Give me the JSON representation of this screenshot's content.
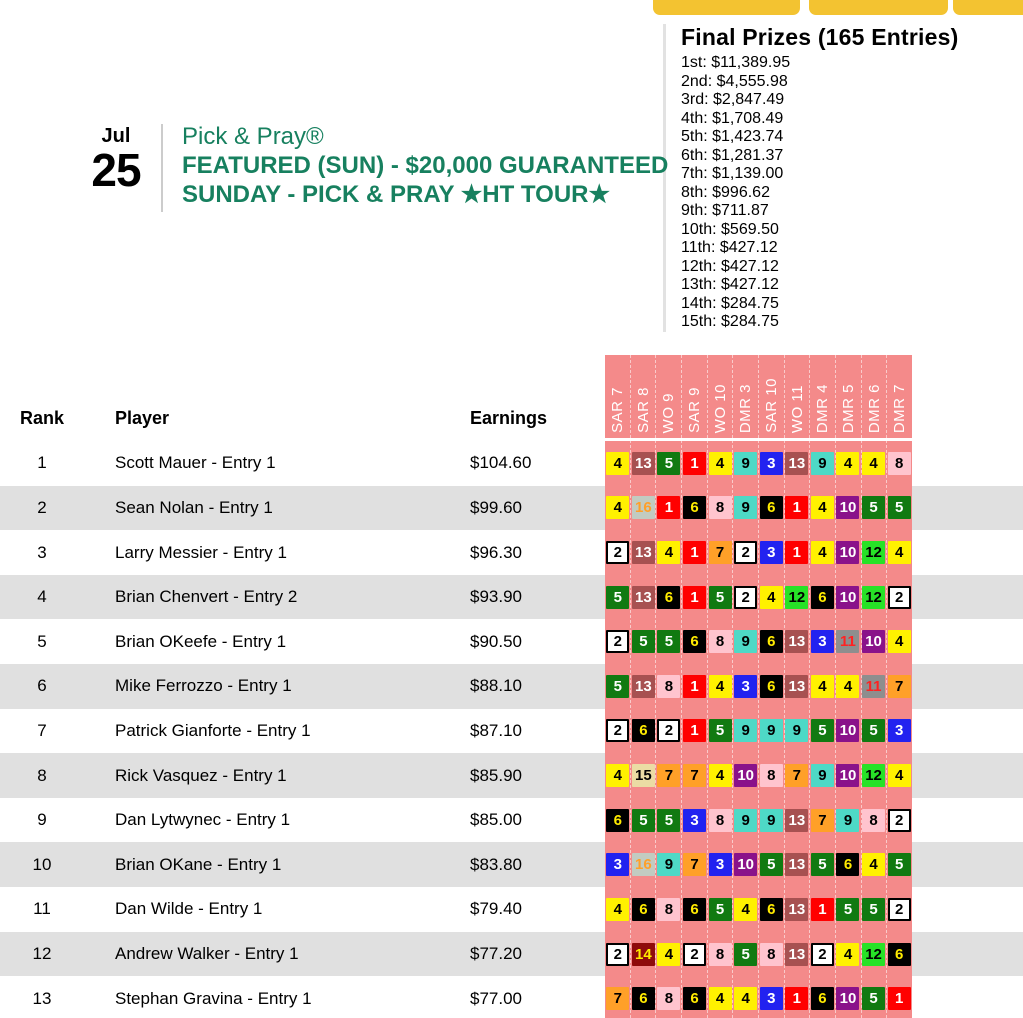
{
  "colors": {
    "accent_green": "#17805F",
    "gold_tab": "#F3C331",
    "race_strip_pink": "#F48A8A",
    "row_alt_gray": "#E0E0E0"
  },
  "event": {
    "date_month": "Jul",
    "date_day": "25",
    "title_line1": "Pick & Pray®",
    "title_line2": "FEATURED (SUN) - $20,000 GUARANTEED",
    "title_line3": "SUNDAY - PICK & PRAY ★HT TOUR★"
  },
  "prizes": {
    "title": "Final Prizes (165 Entries)",
    "items": [
      "1st: $11,389.95",
      "2nd: $4,555.98",
      "3rd: $2,847.49",
      "4th: $1,708.49",
      "5th: $1,423.74",
      "6th: $1,281.37",
      "7th: $1,139.00",
      "8th: $996.62",
      "9th: $711.87",
      "10th: $569.50",
      "11th: $427.12",
      "12th: $427.12",
      "13th: $427.12",
      "14th: $284.75",
      "15th: $284.75"
    ]
  },
  "leaderboard": {
    "columns": {
      "rank": "Rank",
      "player": "Player",
      "earnings": "Earnings"
    },
    "races": [
      "SAR 7",
      "SAR 8",
      "WO 9",
      "SAR 9",
      "WO 10",
      "DMR 3",
      "SAR 10",
      "WO 11",
      "DMR 4",
      "DMR 5",
      "DMR 6",
      "DMR 7"
    ],
    "rows": [
      {
        "rank": "1",
        "player": "Scott Mauer - Entry 1",
        "earnings": "$104.60",
        "picks": [
          4,
          13,
          5,
          1,
          4,
          9,
          3,
          13,
          9,
          4,
          4,
          8
        ]
      },
      {
        "rank": "2",
        "player": "Sean Nolan - Entry 1",
        "earnings": "$99.60",
        "picks": [
          4,
          16,
          1,
          6,
          8,
          9,
          6,
          1,
          4,
          10,
          5,
          5
        ]
      },
      {
        "rank": "3",
        "player": "Larry Messier - Entry 1",
        "earnings": "$96.30",
        "picks": [
          2,
          13,
          4,
          1,
          7,
          2,
          3,
          1,
          4,
          10,
          12,
          4
        ]
      },
      {
        "rank": "4",
        "player": "Brian Chenvert - Entry 2",
        "earnings": "$93.90",
        "picks": [
          5,
          13,
          6,
          1,
          5,
          2,
          4,
          12,
          6,
          10,
          12,
          2
        ]
      },
      {
        "rank": "5",
        "player": "Brian OKeefe - Entry 1",
        "earnings": "$90.50",
        "picks": [
          2,
          5,
          5,
          6,
          8,
          9,
          6,
          13,
          3,
          11,
          10,
          4
        ]
      },
      {
        "rank": "6",
        "player": "Mike Ferrozzo - Entry 1",
        "earnings": "$88.10",
        "picks": [
          5,
          13,
          8,
          1,
          4,
          3,
          6,
          13,
          4,
          4,
          11,
          7
        ]
      },
      {
        "rank": "7",
        "player": "Patrick Gianforte - Entry 1",
        "earnings": "$87.10",
        "picks": [
          2,
          6,
          2,
          1,
          5,
          9,
          9,
          9,
          5,
          10,
          5,
          3
        ]
      },
      {
        "rank": "8",
        "player": "Rick Vasquez - Entry 1",
        "earnings": "$85.90",
        "picks": [
          4,
          15,
          7,
          7,
          4,
          10,
          8,
          7,
          9,
          10,
          12,
          4
        ]
      },
      {
        "rank": "9",
        "player": "Dan Lytwynec - Entry 1",
        "earnings": "$85.00",
        "picks": [
          6,
          5,
          5,
          3,
          8,
          9,
          9,
          13,
          7,
          9,
          8,
          2
        ]
      },
      {
        "rank": "10",
        "player": "Brian OKane - Entry 1",
        "earnings": "$83.80",
        "picks": [
          3,
          16,
          9,
          7,
          3,
          10,
          5,
          13,
          5,
          6,
          4,
          5
        ]
      },
      {
        "rank": "11",
        "player": "Dan Wilde - Entry 1",
        "earnings": "$79.40",
        "picks": [
          4,
          6,
          8,
          6,
          5,
          4,
          6,
          13,
          1,
          5,
          5,
          2
        ]
      },
      {
        "rank": "12",
        "player": "Andrew Walker - Entry 1",
        "earnings": "$77.20",
        "picks": [
          2,
          14,
          4,
          2,
          8,
          5,
          8,
          13,
          2,
          4,
          12,
          6
        ]
      },
      {
        "rank": "13",
        "player": "Stephan Gravina - Entry 1",
        "earnings": "$77.00",
        "picks": [
          7,
          6,
          8,
          6,
          4,
          4,
          3,
          1,
          6,
          10,
          5,
          1
        ]
      }
    ]
  },
  "cloth_colors": {
    "1": {
      "bg": "#FF0000",
      "fg": "#FFFFFF"
    },
    "2": {
      "bg": "#FFFFFF",
      "fg": "#000000",
      "border": "#000000"
    },
    "3": {
      "bg": "#2222F0",
      "fg": "#FFFFFF"
    },
    "4": {
      "bg": "#FFF100",
      "fg": "#000000"
    },
    "5": {
      "bg": "#117A11",
      "fg": "#FFFFFF"
    },
    "6": {
      "bg": "#000000",
      "fg": "#FFEB00"
    },
    "7": {
      "bg": "#FFA028",
      "fg": "#000000"
    },
    "8": {
      "bg": "#FFC4CE",
      "fg": "#000000"
    },
    "9": {
      "bg": "#4ED9C6",
      "fg": "#000000"
    },
    "10": {
      "bg": "#8A128A",
      "fg": "#FFFFFF"
    },
    "11": {
      "bg": "#8E8E8E",
      "fg": "#FF2222"
    },
    "12": {
      "bg": "#27E227",
      "fg": "#000000"
    },
    "13": {
      "bg": "#A75151",
      "fg": "#FFFFFF"
    },
    "14": {
      "bg": "#8E0B0B",
      "fg": "#FFEB00"
    },
    "15": {
      "bg": "#EBDCA4",
      "fg": "#000000"
    },
    "16": {
      "bg": "#C2CBC1",
      "fg": "#FFA028"
    }
  }
}
